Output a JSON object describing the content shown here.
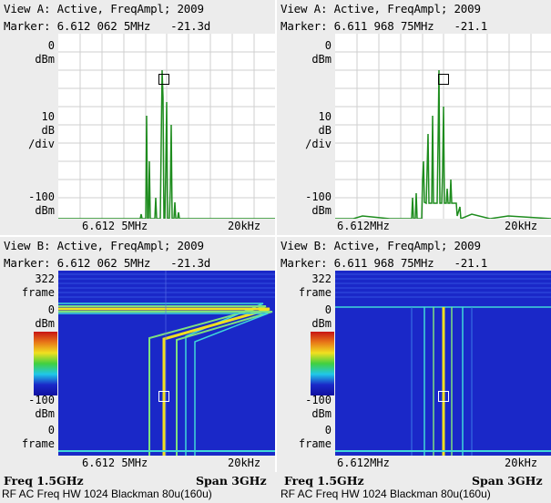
{
  "viewA": {
    "left": {
      "title": "View A: Active, FreqAmpl; 2009",
      "marker": "Marker: 6.612 062 5MHz   -21.3d",
      "y_top": "0",
      "y_top_unit": "dBm",
      "y_mid1": "10",
      "y_mid2": "dB",
      "y_mid3": "/div",
      "y_bot": "-100",
      "y_bot_unit": "dBm",
      "x_left": "6.612 5MHz",
      "x_right": "20kHz"
    },
    "right": {
      "title": "View A: Active, FreqAmpl; 2009",
      "marker": "Marker: 6.611 968 75MHz   -21.1",
      "y_top": "0",
      "y_top_unit": "dBm",
      "y_mid1": "10",
      "y_mid2": "dB",
      "y_mid3": "/div",
      "y_bot": "-100",
      "y_bot_unit": "dBm",
      "x_left": "6.612MHz",
      "x_right": "20kHz"
    }
  },
  "viewB": {
    "left": {
      "title": "View B: Active, FreqAmpl; 2009",
      "marker": "Marker: 6.612 062 5MHz   -21.3d",
      "f_top": "322",
      "f_top_unit": "frame",
      "c_top": "0",
      "c_top_unit": "dBm",
      "c_bot": "-100",
      "c_bot_unit": "dBm",
      "f_bot": "0",
      "f_bot_unit": "frame",
      "x_left": "6.612 5MHz",
      "x_right": "20kHz"
    },
    "right": {
      "title": "View B: Active, FreqAmpl; 2009",
      "marker": "Marker: 6.611 968 75MHz   -21.1",
      "f_top": "322",
      "f_top_unit": "frame",
      "c_top": "0",
      "c_top_unit": "dBm",
      "c_bot": "-100",
      "c_bot_unit": "dBm",
      "f_bot": "0",
      "f_bot_unit": "frame",
      "x_left": "6.612MHz",
      "x_right": "20kHz"
    }
  },
  "footer": {
    "left": {
      "freq": "Freq 1.5GHz",
      "span": "Span 3GHz",
      "settings": "RF AC Freq HW 1024 Blackman 80u(160u)"
    },
    "right": {
      "freq": "Freq 1.5GHz",
      "span": "Span 3GHz",
      "settings": "RF AC Freq HW 1024 Blackman 80u(160u)"
    }
  },
  "colors": {
    "trace": "#1e8c1e",
    "waterfall_bg": "#1a28c8",
    "grid": "#cfcfcf"
  }
}
